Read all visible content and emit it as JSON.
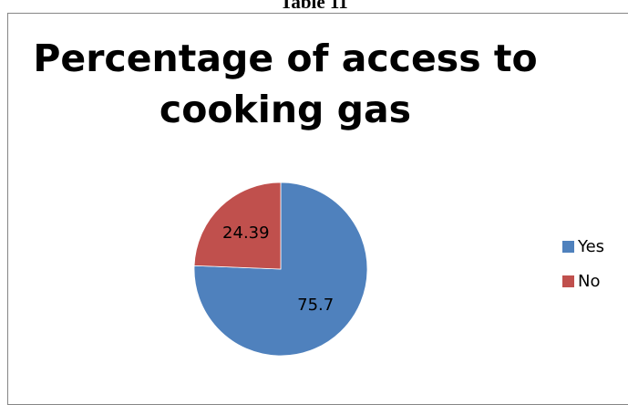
{
  "caption": "Table 11",
  "chart_data": {
    "type": "pie",
    "title": "Percentage of access to cooking gas",
    "categories": [
      "Yes",
      "No"
    ],
    "values": [
      75.7,
      24.39
    ],
    "data_labels": [
      "75.7",
      "24.39"
    ],
    "colors": [
      "#4f81bd",
      "#c0504d"
    ],
    "legend_position": "right"
  },
  "legend": {
    "items": [
      {
        "label": "Yes",
        "color": "#4f81bd"
      },
      {
        "label": "No",
        "color": "#c0504d"
      }
    ]
  }
}
